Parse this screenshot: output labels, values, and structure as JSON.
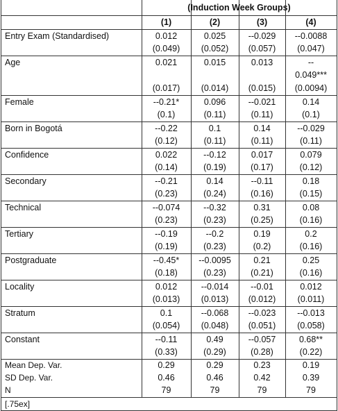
{
  "header": {
    "group_title": "(Induction Week Groups)",
    "columns": [
      "(1)",
      "(2)",
      "(3)",
      "(4)"
    ]
  },
  "rows": [
    {
      "label": "Entry Exam (Standardised)",
      "coef": [
        "0.012",
        "0.025",
        "--0.029",
        "--0.0088"
      ],
      "se": [
        "(0.049)",
        "(0.052)",
        "(0.057)",
        "(0.047)"
      ]
    },
    {
      "label": "Age",
      "coef": [
        "0.021",
        "0.015",
        "0.013",
        "--"
      ],
      "extra": [
        "",
        "",
        "",
        "0.049***"
      ],
      "se": [
        "(0.017)",
        "(0.014)",
        "(0.015)",
        "(0.0094)"
      ]
    },
    {
      "label": "Female",
      "coef": [
        "--0.21*",
        "0.096",
        "--0.021",
        "0.14"
      ],
      "se": [
        "(0.1)",
        "(0.11)",
        "(0.11)",
        "(0.1)"
      ]
    },
    {
      "label": "Born in Bogotá",
      "coef": [
        "--0.22",
        "0.1",
        "0.14",
        "--0.029"
      ],
      "se": [
        "(0.12)",
        "(0.11)",
        "(0.11)",
        "(0.11)"
      ]
    },
    {
      "label": "Confidence",
      "coef": [
        "0.022",
        "--0.12",
        "0.017",
        "0.079"
      ],
      "se": [
        "(0.14)",
        "(0.19)",
        "(0.17)",
        "(0.12)"
      ]
    },
    {
      "label": "Secondary",
      "coef": [
        "--0.21",
        "0.14",
        "--0.11",
        "0.18"
      ],
      "se": [
        "(0.23)",
        "(0.24)",
        "(0.16)",
        "(0.15)"
      ]
    },
    {
      "label": "Technical",
      "coef": [
        "--0.074",
        "--0.32",
        "0.31",
        "0.08"
      ],
      "se": [
        "(0.23)",
        "(0.23)",
        "(0.25)",
        "(0.16)"
      ]
    },
    {
      "label": "Tertiary",
      "coef": [
        "--0.19",
        "--0.2",
        "0.19",
        "0.2"
      ],
      "se": [
        "(0.19)",
        "(0.23)",
        "(0.2)",
        "(0.16)"
      ]
    },
    {
      "label": "Postgraduate",
      "coef": [
        "--0.45*",
        "--0.0095",
        "0.21",
        "0.25"
      ],
      "se": [
        "(0.18)",
        "(0.23)",
        "(0.21)",
        "(0.16)"
      ]
    },
    {
      "label": "Locality",
      "coef": [
        "0.012",
        "--0.014",
        "--0.01",
        "0.012"
      ],
      "se": [
        "(0.013)",
        "(0.013)",
        "(0.012)",
        "(0.011)"
      ]
    },
    {
      "label": "Stratum",
      "coef": [
        "0.1",
        "--0.068",
        "--0.023",
        "--0.013"
      ],
      "se": [
        "(0.054)",
        "(0.048)",
        "(0.051)",
        "(0.058)"
      ]
    },
    {
      "label": "Constant",
      "coef": [
        "--0.11",
        "0.49",
        "--0.057",
        "0.68**"
      ],
      "se": [
        "(0.33)",
        "(0.29)",
        "(0.28)",
        "(0.22)"
      ]
    }
  ],
  "stats": [
    {
      "label": "Mean Dep. Var.",
      "values": [
        "0.29",
        "0.29",
        "0.23",
        "0.19"
      ]
    },
    {
      "label": "SD Dep. Var.",
      "values": [
        "0.46",
        "0.46",
        "0.42",
        "0.39"
      ]
    },
    {
      "label": "N",
      "values": [
        "79",
        "79",
        "79",
        "79"
      ]
    }
  ],
  "footer": "[.75ex]"
}
